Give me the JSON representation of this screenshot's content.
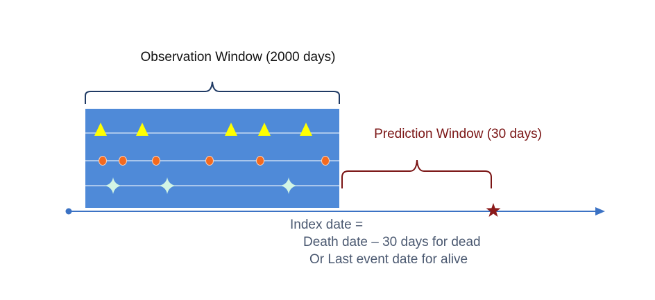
{
  "observation_window": {
    "label": "Observation Window (2000 days)"
  },
  "prediction_window": {
    "label": "Prediction Window (30 days)"
  },
  "index_date": {
    "line1": "Index date =",
    "line2": "Death date – 30 days for dead",
    "line3": "Or Last event date  for alive"
  },
  "event_rows": [
    {
      "marker": "triangle-icon",
      "color": "#ffff00"
    },
    {
      "marker": "circle-icon",
      "color": "#f46a1f"
    },
    {
      "marker": "four-point-star-icon",
      "color": "#d2f5e4"
    }
  ],
  "colors": {
    "window_fill": "#4f8ad8",
    "timeline": "#3b72c4",
    "brace_observation": "#1f3a64",
    "brace_prediction": "#7a1414",
    "death_marker": "#8b1a1a"
  }
}
